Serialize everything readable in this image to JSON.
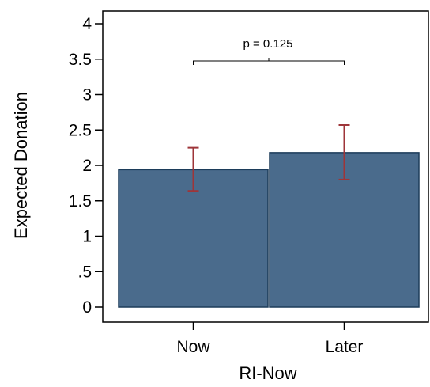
{
  "chart_data": {
    "type": "bar",
    "categories": [
      "Now",
      "Later"
    ],
    "values": [
      1.94,
      2.18
    ],
    "error_low": [
      1.64,
      1.8
    ],
    "error_high": [
      2.25,
      2.57
    ],
    "xlabel": "RI-Now",
    "ylabel": "Expected Donation",
    "ylim": [
      0,
      4.2
    ],
    "yticks": [
      0,
      0.5,
      1,
      1.5,
      2,
      2.5,
      3,
      3.5,
      4
    ],
    "ytick_labels": [
      "0",
      ".5",
      "1",
      "1.5",
      "2",
      "2.5",
      "3",
      "3.5",
      "4"
    ],
    "grid": false,
    "annotation": "p = 0.125",
    "colors": {
      "bar": "#4a6b8c",
      "bar_edge": "#1c3c5a",
      "error": "#9e3539",
      "axis": "#000000"
    }
  }
}
